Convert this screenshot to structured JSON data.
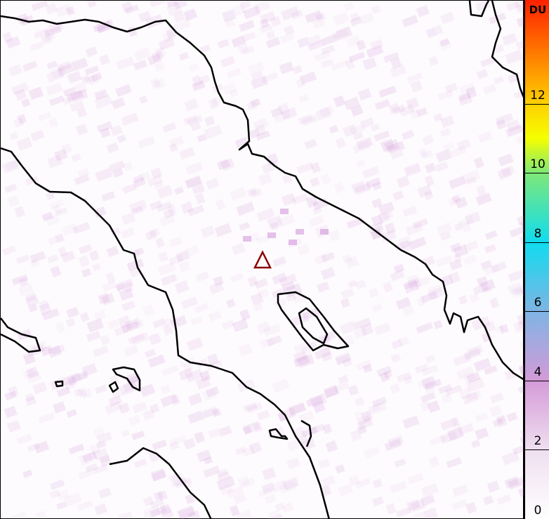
{
  "map": {
    "volcano_marker": {
      "icon": "triangle-icon",
      "color": "#8b0000"
    },
    "coastline_color": "#000000"
  },
  "colorbar": {
    "unit": "DU",
    "min": 0,
    "max": 15,
    "ticks": [
      "0",
      "2",
      "4",
      "6",
      "8",
      "10",
      "12"
    ],
    "tick_values": [
      0,
      2,
      4,
      6,
      8,
      10,
      12
    ],
    "color_stops": [
      {
        "value": 0,
        "color": "#ffffff"
      },
      {
        "value": 2,
        "color": "#efdff0"
      },
      {
        "value": 4,
        "color": "#d49ad8"
      },
      {
        "value": 6,
        "color": "#7fb4e4"
      },
      {
        "value": 8,
        "color": "#10dcef"
      },
      {
        "value": 10,
        "color": "#7ee878"
      },
      {
        "value": 11,
        "color": "#f5ff00"
      },
      {
        "value": 12,
        "color": "#ffd000"
      },
      {
        "value": 15,
        "color": "#ff2000"
      }
    ]
  }
}
